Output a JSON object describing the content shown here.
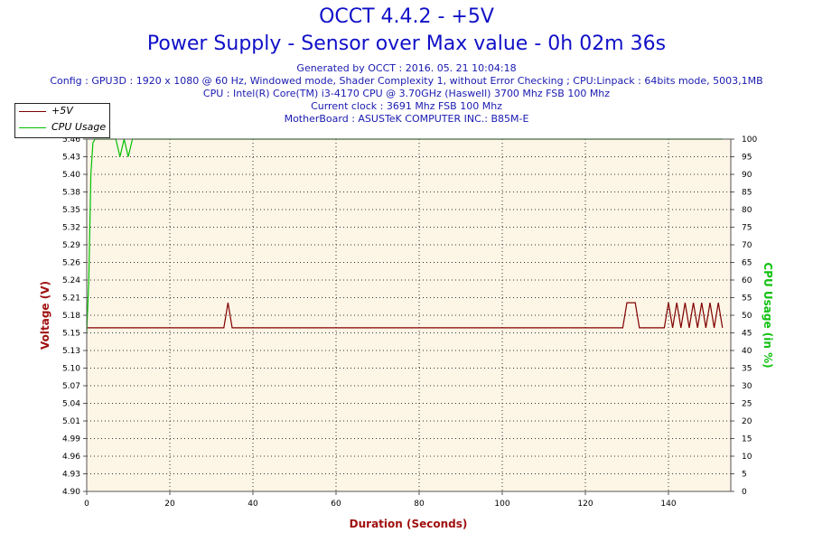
{
  "title": "OCCT 4.4.2 - +5V",
  "subtitle": "Power Supply - Sensor over Max value - 0h 02m 36s",
  "info_lines": [
    "Generated by OCCT : 2016. 05. 21 10:04:18",
    "Config : GPU3D : 1920 x 1080 @ 60 Hz, Windowed mode, Shader Complexity 1, without Error Checking ; CPU:Linpack : 64bits mode, 5003,1MB",
    "CPU : Intel(R) Core(TM) i3-4170 CPU @ 3.70GHz (Haswell) 3700 Mhz FSB 100 Mhz",
    "Current clock : 3691 Mhz FSB 100 Mhz",
    "MotherBoard : ASUSTeK COMPUTER INC.: B85M-E"
  ],
  "colors": {
    "voltage": "#800000",
    "cpu_usage": "#00c000",
    "plot_bg": "#fdf5e6",
    "title": "#1010c8"
  },
  "chart_data": {
    "type": "line",
    "xlabel": "Duration (Seconds)",
    "ylabel_left": "Voltage (V)",
    "ylabel_right": "CPU Usage (in %)",
    "xlim": [
      0,
      155
    ],
    "ylim_left": [
      4.9,
      5.46
    ],
    "ylim_right": [
      0,
      100
    ],
    "x_ticks": [
      "0",
      "20",
      "40",
      "60",
      "80",
      "100",
      "120",
      "140"
    ],
    "y_ticks_left": [
      "5.46",
      "5.43",
      "5.40",
      "5.38",
      "5.35",
      "5.32",
      "5.29",
      "5.26",
      "5.24",
      "5.21",
      "5.18",
      "5.15",
      "5.13",
      "5.10",
      "5.07",
      "5.04",
      "5.01",
      "4.99",
      "4.96",
      "4.93",
      "4.90"
    ],
    "y_ticks_right": [
      "100",
      "95",
      "90",
      "85",
      "80",
      "75",
      "70",
      "65",
      "60",
      "55",
      "50",
      "45",
      "40",
      "35",
      "30",
      "25",
      "20",
      "15",
      "10",
      "5",
      "0"
    ],
    "grid": true,
    "legend_position": "top-left",
    "series": [
      {
        "name": "+5V",
        "axis": "left",
        "x": [
          0,
          33,
          34,
          35,
          129,
          130,
          132,
          133,
          139,
          140,
          141,
          142,
          143,
          144,
          145,
          146,
          147,
          148,
          149,
          150,
          151,
          152,
          153
        ],
        "y": [
          5.16,
          5.16,
          5.2,
          5.16,
          5.16,
          5.2,
          5.2,
          5.16,
          5.16,
          5.2,
          5.16,
          5.2,
          5.16,
          5.2,
          5.16,
          5.2,
          5.16,
          5.2,
          5.16,
          5.2,
          5.16,
          5.2,
          5.16
        ]
      },
      {
        "name": "CPU Usage",
        "axis": "right",
        "x": [
          0,
          0.5,
          1,
          1.5,
          2,
          7,
          8,
          9,
          10,
          11,
          12,
          153
        ],
        "y": [
          45,
          60,
          90,
          99,
          100,
          100,
          95,
          100,
          95,
          100,
          100,
          100
        ]
      }
    ]
  }
}
